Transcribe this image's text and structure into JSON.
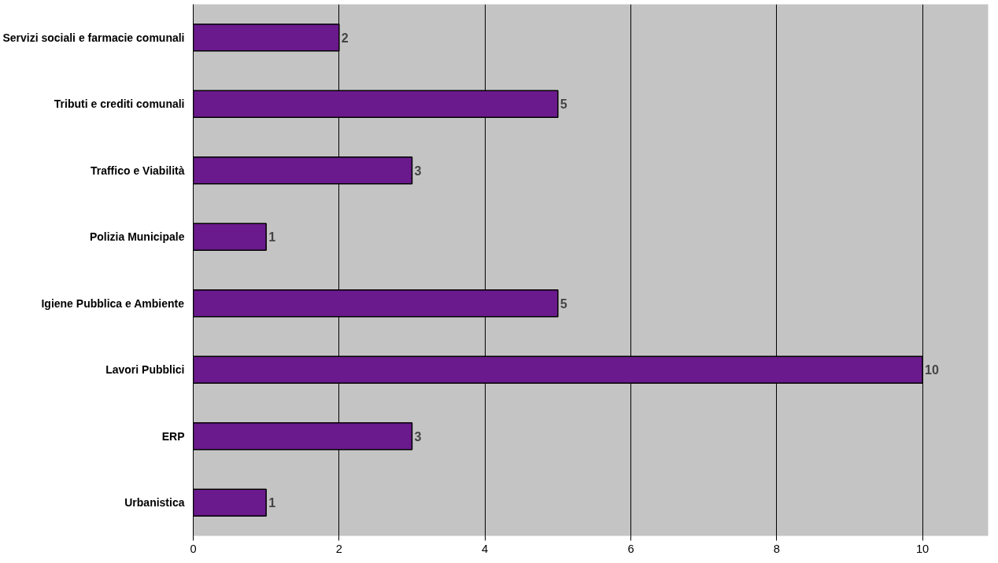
{
  "chart_data": {
    "type": "bar",
    "orientation": "horizontal",
    "categories": [
      "Servizi sociali e farmacie comunali",
      "Tributi e crediti comunali",
      "Traffico e Viabilità",
      "Polizia Municipale",
      "Igiene Pubblica e Ambiente",
      "Lavori Pubblici",
      "ERP",
      "Urbanistica"
    ],
    "values": [
      2,
      5,
      3,
      1,
      5,
      10,
      3,
      1
    ],
    "color": "#6a1a8c",
    "xlim": [
      0,
      10.9
    ],
    "xticks": [
      0,
      2,
      4,
      6,
      8,
      10
    ],
    "grid": "x",
    "data_labels": true
  }
}
